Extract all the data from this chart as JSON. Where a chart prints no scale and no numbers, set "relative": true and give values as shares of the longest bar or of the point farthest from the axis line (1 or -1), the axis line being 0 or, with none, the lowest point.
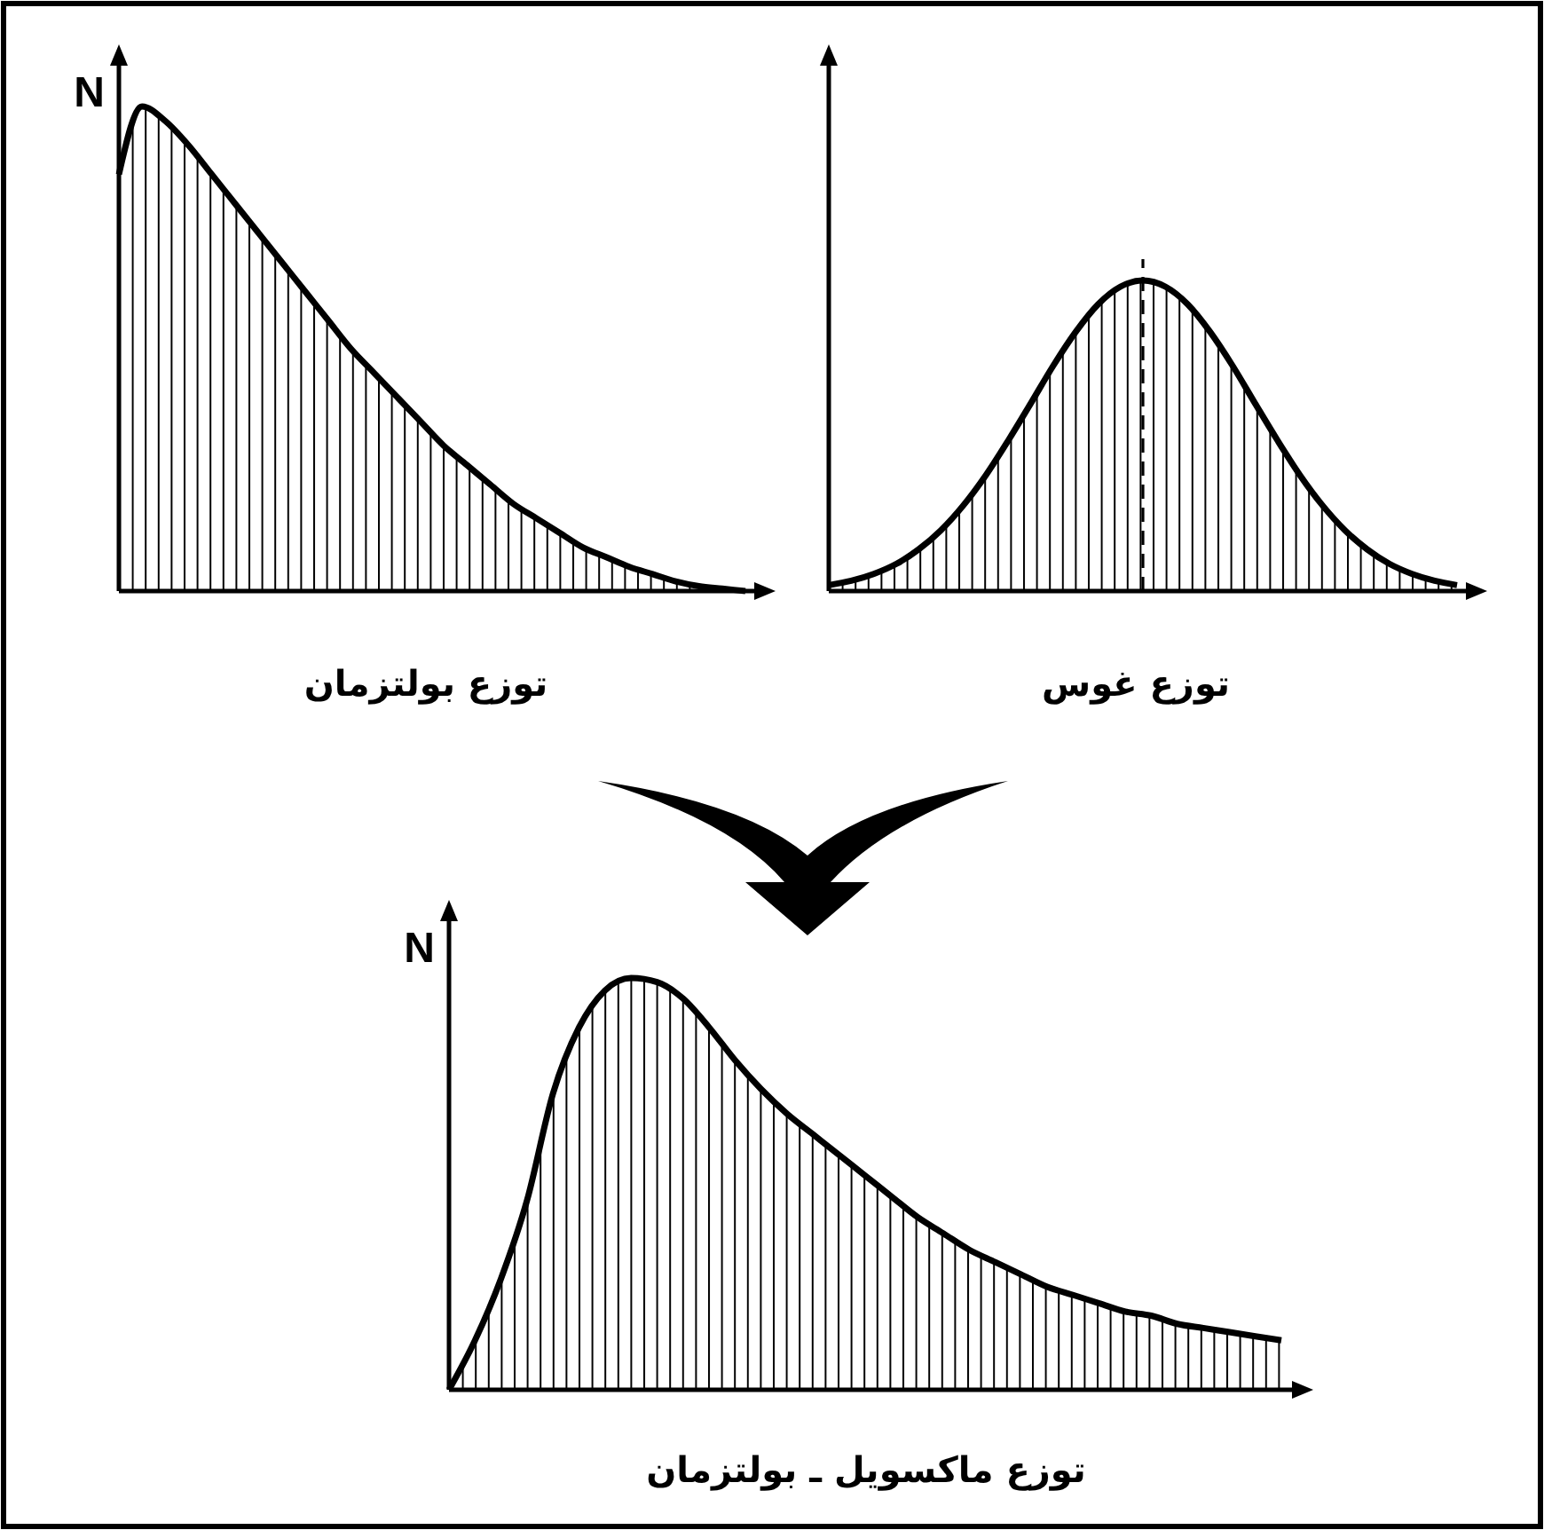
{
  "chart_data": [
    {
      "type": "area",
      "title": "توزع بولتزمان",
      "ylabel": "N",
      "relative": true,
      "categories": [
        null,
        null,
        null,
        null,
        null,
        null,
        null,
        null,
        null,
        null,
        null,
        null,
        null,
        null,
        null,
        null,
        null,
        null,
        null,
        null,
        null,
        null,
        null,
        null,
        null,
        null,
        null,
        null
      ],
      "series": [
        {
          "color": "#000000",
          "values": [
            0.86,
            1.0,
            0.97,
            0.92,
            0.86,
            0.8,
            0.74,
            0.68,
            0.62,
            0.56,
            0.5,
            0.45,
            0.4,
            0.35,
            0.3,
            0.26,
            0.22,
            0.18,
            0.15,
            0.12,
            0.09,
            0.07,
            0.05,
            0.035,
            0.02,
            0.01,
            0.005,
            0
          ]
        }
      ]
    },
    {
      "type": "area",
      "title": "توزع غوس",
      "relative": true,
      "categories": [
        null,
        null,
        null,
        null,
        null,
        null,
        null,
        null,
        null,
        null,
        null,
        null,
        null,
        null,
        null,
        null,
        null,
        null,
        null,
        null,
        null,
        null,
        null,
        null,
        null,
        null,
        null,
        null,
        null
      ],
      "series": [
        {
          "color": "#000000",
          "values": [
            0.019,
            0.033,
            0.055,
            0.087,
            0.134,
            0.196,
            0.276,
            0.373,
            0.485,
            0.604,
            0.725,
            0.834,
            0.923,
            0.98,
            1,
            0.98,
            0.923,
            0.834,
            0.725,
            0.604,
            0.485,
            0.373,
            0.276,
            0.196,
            0.134,
            0.087,
            0.055,
            0.033,
            0.019
          ]
        }
      ]
    },
    {
      "type": "area",
      "title": "توزع ماكسويل ـ بولتزمان",
      "ylabel": "N",
      "relative": true,
      "categories": [
        null,
        null,
        null,
        null,
        null,
        null,
        null,
        null,
        null,
        null,
        null,
        null,
        null,
        null,
        null,
        null,
        null,
        null,
        null,
        null,
        null,
        null,
        null,
        null,
        null,
        null,
        null,
        null,
        null,
        null,
        null,
        null,
        null
      ],
      "series": [
        {
          "color": "#000000",
          "values": [
            0,
            0.12,
            0.27,
            0.46,
            0.72,
            0.88,
            0.97,
            1.0,
            0.99,
            0.95,
            0.88,
            0.8,
            0.73,
            0.67,
            0.62,
            0.57,
            0.52,
            0.47,
            0.42,
            0.38,
            0.34,
            0.31,
            0.28,
            0.25,
            0.23,
            0.21,
            0.19,
            0.18,
            0.16,
            0.15,
            0.14,
            0.13,
            0.12
          ]
        }
      ]
    }
  ]
}
